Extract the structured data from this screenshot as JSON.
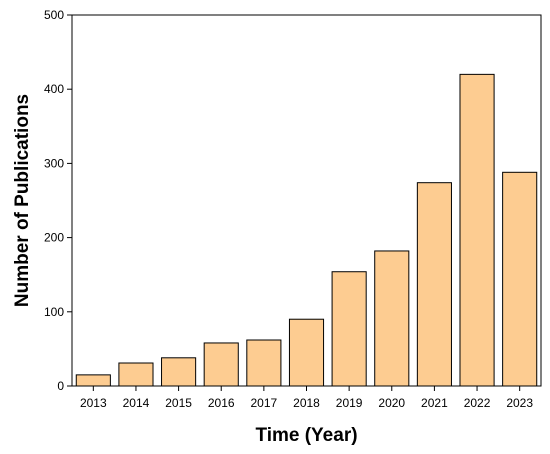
{
  "chart_data": {
    "type": "bar",
    "title": "",
    "xlabel": "Time (Year)",
    "ylabel": "Number of Publications",
    "categories": [
      "2013",
      "2014",
      "2015",
      "2016",
      "2017",
      "2018",
      "2019",
      "2020",
      "2021",
      "2022",
      "2023"
    ],
    "values": [
      15,
      31,
      38,
      58,
      62,
      90,
      154,
      182,
      274,
      420,
      288
    ],
    "ylim": [
      0,
      500
    ],
    "yticks": [
      "0",
      "100",
      "200",
      "300",
      "400",
      "500"
    ],
    "grid": false,
    "legend": "none",
    "bar_color": "#FDCC91",
    "bar_edge_color": "#000000"
  }
}
